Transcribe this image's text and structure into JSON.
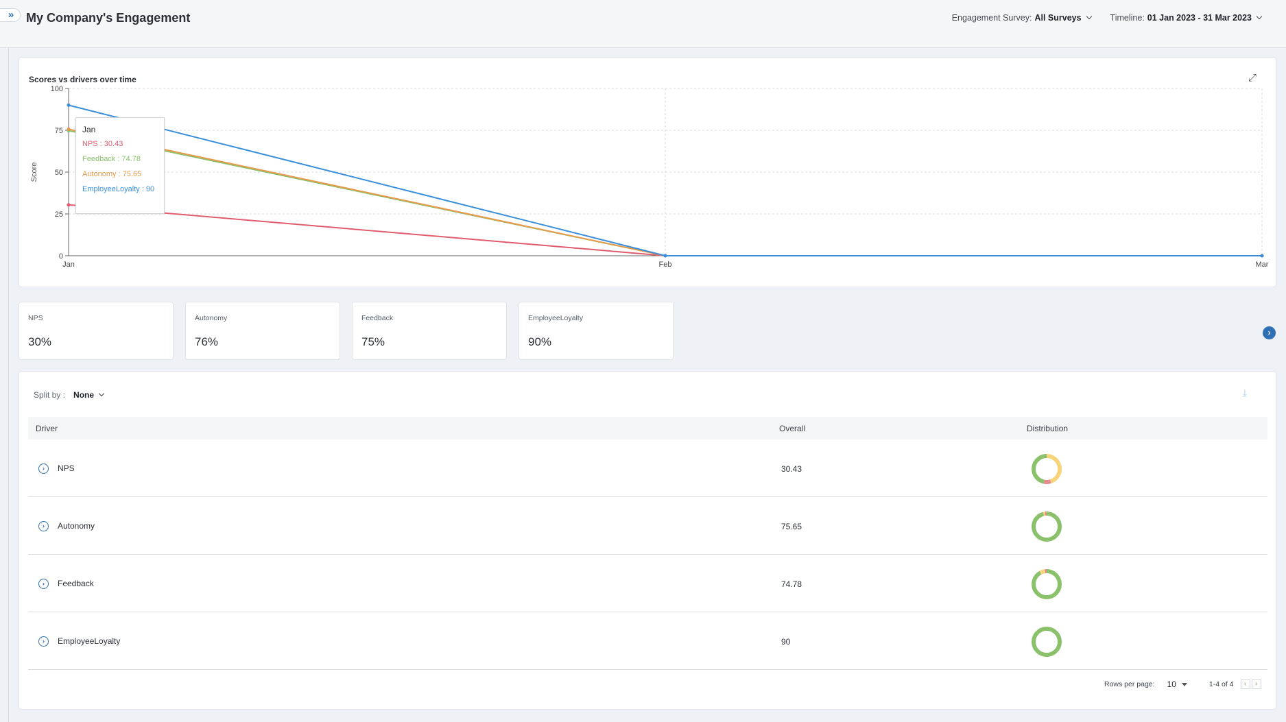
{
  "header": {
    "expand_icon": "double-chevron-right-icon",
    "title": "My Company's Engagement",
    "survey_label": "Engagement Survey:",
    "survey_value": "All Surveys",
    "timeline_label": "Timeline:",
    "timeline_value": "01 Jan 2023 - 31 Mar 2023"
  },
  "chart_card": {
    "fullscreen_icon": "expand-diagonal-icon"
  },
  "chart_data": {
    "type": "line",
    "title": "Scores vs drivers over time",
    "xlabel": "",
    "ylabel": "Score",
    "x": [
      "Jan",
      "Feb",
      "Mar"
    ],
    "ylim": [
      0,
      100
    ],
    "yticks": [
      0,
      25,
      50,
      75,
      100
    ],
    "grid": true,
    "series": [
      {
        "name": "NPS",
        "color": "#e05c6e",
        "values": [
          30.43,
          0,
          0
        ]
      },
      {
        "name": "Feedback",
        "color": "#8bc16b",
        "values": [
          74.78,
          0,
          0
        ]
      },
      {
        "name": "Autonomy",
        "color": "#e69a4a",
        "values": [
          75.65,
          0,
          0
        ]
      },
      {
        "name": "EmployeeLoyalty",
        "color": "#3a8fdb",
        "values": [
          90,
          0,
          0
        ]
      }
    ],
    "tooltip": {
      "title": "Jan",
      "rows": [
        "NPS : 30.43",
        "Feedback : 74.78",
        "Autonomy : 75.65",
        "EmployeeLoyalty : 90"
      ]
    }
  },
  "metrics": [
    {
      "label": "NPS",
      "value": "30%"
    },
    {
      "label": "Autonomy",
      "value": "76%"
    },
    {
      "label": "Feedback",
      "value": "75%"
    },
    {
      "label": "EmployeeLoyalty",
      "value": "90%"
    }
  ],
  "metrics_next_icon": "chevron-right-icon",
  "table": {
    "split_label": "Split by :",
    "split_value": "None",
    "download_icon": "download-icon",
    "columns": [
      "Driver",
      "Overall",
      "Distribution"
    ],
    "rows": [
      {
        "name": "NPS",
        "overall": "30.43",
        "distribution": [
          {
            "color": "#f5d47a",
            "value": 0.45
          },
          {
            "color": "#e98a93",
            "value": 0.08
          },
          {
            "color": "#8bc16b",
            "value": 0.47
          }
        ]
      },
      {
        "name": "Autonomy",
        "overall": "75.65",
        "distribution": [
          {
            "color": "#8bc16b",
            "value": 0.96
          },
          {
            "color": "#f5d47a",
            "value": 0.02
          },
          {
            "color": "#e98a93",
            "value": 0.02
          }
        ]
      },
      {
        "name": "Feedback",
        "overall": "74.78",
        "distribution": [
          {
            "color": "#8bc16b",
            "value": 0.92
          },
          {
            "color": "#f5d47a",
            "value": 0.06
          },
          {
            "color": "#e98a93",
            "value": 0.02
          }
        ]
      },
      {
        "name": "EmployeeLoyalty",
        "overall": "90",
        "distribution": [
          {
            "color": "#8bc16b",
            "value": 1.0
          }
        ]
      }
    ],
    "row_expand_icon": "chevron-right-circle-icon",
    "rows_per_page_label": "Rows per page:",
    "rows_per_page_value": "10",
    "range_text": "1-4 of 4",
    "prev_icon": "chevron-left-icon",
    "next_icon": "chevron-right-icon"
  }
}
